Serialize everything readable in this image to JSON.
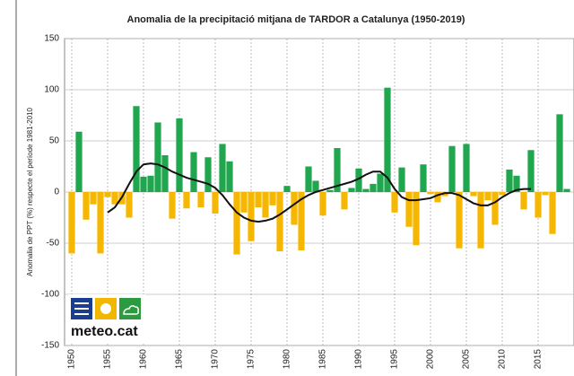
{
  "chart_data": {
    "type": "bar",
    "title": "Anomalia de la precipitació mitjana de TARDOR a Catalunya (1950-2019)",
    "y_label": "Anomalia de PPT (%) respecte el període 1981-2010",
    "logo_text": "meteo.cat",
    "x": [
      1950,
      1951,
      1952,
      1953,
      1954,
      1955,
      1956,
      1957,
      1958,
      1959,
      1960,
      1961,
      1962,
      1963,
      1964,
      1965,
      1966,
      1967,
      1968,
      1969,
      1970,
      1971,
      1972,
      1973,
      1974,
      1975,
      1976,
      1977,
      1978,
      1979,
      1980,
      1981,
      1982,
      1983,
      1984,
      1985,
      1986,
      1987,
      1988,
      1989,
      1990,
      1991,
      1992,
      1993,
      1994,
      1995,
      1996,
      1997,
      1998,
      1999,
      2000,
      2001,
      2002,
      2003,
      2004,
      2005,
      2006,
      2007,
      2008,
      2009,
      2010,
      2011,
      2012,
      2013,
      2014,
      2015,
      2016,
      2017,
      2018,
      2019
    ],
    "values": [
      -60,
      59,
      -27,
      -12,
      -60,
      -5,
      -12,
      -12,
      -25,
      84,
      15,
      16,
      68,
      36,
      -26,
      72,
      -16,
      39,
      -15,
      34,
      -21,
      47,
      30,
      -61,
      -20,
      -48,
      -15,
      -25,
      -13,
      -58,
      6,
      -32,
      -57,
      25,
      11,
      -23,
      2,
      43,
      -17,
      4,
      23,
      3,
      8,
      18,
      102,
      -20,
      24,
      -34,
      -52,
      27,
      -2,
      -10,
      -4,
      45,
      -55,
      47,
      -4,
      -55,
      -8,
      -32,
      -3,
      22,
      16,
      -17,
      41,
      -25,
      -3,
      -41,
      76,
      3
    ],
    "trend_values": [
      null,
      null,
      null,
      null,
      null,
      -20,
      -15,
      -5,
      8,
      20,
      27,
      28,
      27,
      24,
      20,
      17,
      14,
      12,
      10,
      8,
      4,
      -3,
      -12,
      -20,
      -25,
      -28,
      -29,
      -28,
      -26,
      -22,
      -17,
      -12,
      -7,
      -3,
      0,
      2,
      4,
      6,
      8,
      10,
      13,
      17,
      20,
      20,
      14,
      3,
      -5,
      -8,
      -8,
      -7,
      -6,
      -3,
      -1,
      -1,
      -3,
      -7,
      -11,
      -13,
      -13,
      -10,
      -5,
      -1,
      2,
      3,
      3,
      null,
      null,
      null,
      null,
      null
    ],
    "positive_color": "#1fa64e",
    "negative_color": "#f5b700",
    "trend_color": "#111111",
    "xlim": [
      1949,
      2020
    ],
    "xticks": [
      1950,
      1955,
      1960,
      1965,
      1970,
      1975,
      1980,
      1985,
      1990,
      1995,
      2000,
      2005,
      2010,
      2015
    ],
    "ylim": [
      -150,
      150
    ],
    "yticks": [
      -150,
      -100,
      -50,
      0,
      50,
      100,
      150
    ],
    "grid": true
  }
}
